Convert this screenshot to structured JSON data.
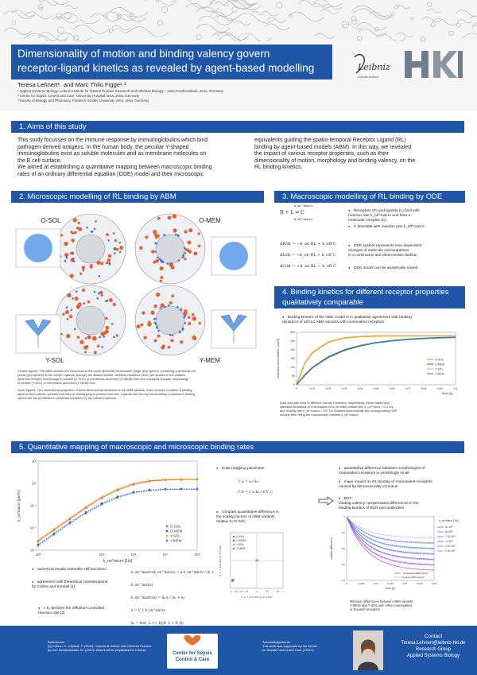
{
  "title_lines": [
    "Dimensionality of motion and binding valency govern",
    "receptor-ligand kinetics as revealed by agent-based modelling"
  ],
  "authors": "Teresa Lehnert¹˒ and Marc Thilo Figge¹˒³",
  "affiliations": [
    "¹ Applied Systems Biology, Leibniz Institute for Natural Product Research and Infection Biology – Hans-Knöll-Institute, Jena, Germany",
    "² Center for Sepsis Control and Care, University Hospital Jena, Jena, Germany",
    "³ Faculty of Biology and Pharmacy, Friedrich Schiller University Jena, Jena, Germany"
  ],
  "logos": {
    "leibniz": "Leibniz",
    "leibniz_sub": "Leibniz-Institut",
    "hki": "HKI"
  },
  "sec1": {
    "heading": "1. Aims of this study",
    "left_lines": [
      "This study focusses on the immune response by immunoglobulins which bind",
      "pathogen-derived antigens. In the human body, the peculiar Y-shaped",
      "immunoglobulins exist as soluble molecules and as membrane molecules on",
      "the B cell surface.",
      "We aimed at establishing a quantitative mapping between macroscopic binding",
      "rates of an ordinary differential equation (ODE) model and their microscopic"
    ],
    "right_lines": [
      "equivalents guiding the spatio-temporal Receptor Ligand (RL)",
      "binding by  agent-based models (ABM). In this way, we revealed",
      "the impact of various receptor properties, such as their",
      "dimensionality of motion, morphology and binding valency, on the",
      "RL binding kinetics."
    ]
  },
  "sec2": {
    "heading": "2. Microscopic modelling of RL binding by ABM",
    "labels": [
      "O-SOL",
      "O-MEM",
      "Y-SOL",
      "Y-MEM"
    ],
    "caption1": [
      "Central figures: The ABM variants are composed of the same spherical environment (large grey sphere) containing a spherical cell",
      "(small grey sphere) at the center. Ligands (orange) are always soluble, whereas receptors (blue) are studied in the variants",
      "spherical receptor morphology in soluble (O-SOL) or membrane-anchored (O-MEM) form and Y-shaped receptor morphology",
      "in soluble (Y-SOL) or membrane-anchored (Y-MEM) form."
    ],
    "caption2": [
      "Outer figures: Two dimensional projection of three-dimensional receptors of the ABM variants. Each receptor consists of binding",
      "spheres and collision spheres that may be overlapping in position and size. Ligands can bind by encountering a receptor's binding",
      "sphere but are prohibited to penetrate receptors by the collision spheres."
    ]
  },
  "sec3": {
    "heading": "3. Macroscopic modelling of RL binding by ODE",
    "bullets": [
      [
        "Receptors (R) and ligands (L) bind with",
        "reaction rate k_on^macro and form a",
        "molecular complex (C)"
      ],
      [
        "C dissolate with reaction rate k_off^macro"
      ],
      [
        "ODE system represents time-dependent",
        "changes of molecule concentrations",
        "in a continuous and deterministic fashion"
      ],
      [
        "ODE model can be analytically solved"
      ]
    ],
    "eq_reaction": "R + L ⇌ C",
    "eq_rate_top": "k_on^macro",
    "eq_rate_bottom": "k_off^macro",
    "eq_lines": [
      "dR/dt = −k_on RL + k_off C",
      "dL/dt = −k_on RL + k_off C",
      "dC/dt = +k_on RL − k_off C"
    ]
  },
  "sec4": {
    "heading_lines": [
      "4. Binding kinetics for different receptor properties",
      "qualitatively comparable"
    ],
    "bullet": [
      "binding kinetics of the ODE model is in qualitative agreement with binding",
      "dynamics of all four ABM variants with monovalent receptors"
    ],
    "caption": [
      "Dark and pale lines in different colours represent, respectively, mean values and",
      "standard deviations of 5 simulation runs per ABM variant with k_on^micro = 0.1 1/s",
      "and binding rate k_on^macro = 10⁹ 1/s. Dashed lines indicate the corresponding ODE",
      "models after fitting the  macroscopic reaction k_on^macro."
    ]
  },
  "sec5": {
    "heading": "5. Quantitative mapping of macroscopic and microscopic binding rates",
    "bullets_left": [
      [
        "numerical results resemble Hill functions:"
      ],
      [
        "agreement with theoretical considerations",
        "by Collins and Kimball [1]:"
      ]
    ],
    "note_left": [
      "> k₂ denotes the diffusion-controlled",
      "reaction rate [2]"
    ],
    "formulas_left": [
      "k_on^macro(k_on^micro) = a k_on^micro / (b + k_on^micro)",
      "k_on^macro(κ) = k₂ κ / (k₂ + κ)",
      "κ = V_c k_on^micro",
      "k₂ = 4π(r_L + r_R)(D_L + D_R)"
    ],
    "mid_bullets": [
      [
        "scale mapping parameter"
      ],
      [
        "compare quantitative difference in",
        "the scaling factors of ABM variants",
        "relative to O-SOL:"
      ]
    ],
    "mid_formulas": [
      "f_a = a / k₂",
      "f_b = f_a k₂ / b V_c"
    ],
    "right_bullets": [
      [
        "quantitative difference between morphologies of",
        "monovalent receptors is vanishingly small"
      ],
      [
        "major impact on RL binding of monovalent receptors",
        "caused by dimensionality of motion"
      ],
      [
        "BUT:",
        "binding valency compensates differences in the",
        "binding kinetics of BCR and antibodies"
      ]
    ],
    "right_caption": [
      "Relative differences between ABM variants",
      "Y-MEM and Y-SOL with either monovalent",
      "or bivalent receptors"
    ]
  },
  "footer": {
    "refs_title": "References:",
    "refs": [
      "[1] Collins, G., Kimball, F. (1949). Journal of Colloid and Interface Science.",
      "[2] Von Smoluchowski, M. (1917). Zeitschrift für physikalische Chemie"
    ],
    "center_lines": [
      "Center for Sepsis",
      "Control & Care"
    ],
    "ack_title": "Acknowledgements:",
    "ack": [
      "This work was supported by the Center",
      "for Sepsis Control and Care (CSCC)."
    ],
    "contact_title": "Contact",
    "contact": [
      "Teresa.Lehnert@leibniz-hki.de",
      "Research Group",
      "Applied Systems Biology"
    ]
  },
  "chart_data": [
    {
      "type": "line",
      "title": "",
      "xlabel": "time [s]",
      "ylabel": "molecular concentration [1/μm³]",
      "xlim": [
        0,
        0.1
      ],
      "ylim": [
        0,
        300
      ],
      "x_ticks": [
        "0",
        "0.01",
        "0.02",
        "0.03",
        "0.04",
        "0.05",
        "0.06",
        "0.07",
        "0.08",
        "0.09",
        "0.1"
      ],
      "y_ticks": [
        "0",
        "50",
        "100",
        "150",
        "200",
        "250",
        "300"
      ],
      "x": [
        0,
        0.005,
        0.01,
        0.02,
        0.03,
        0.04,
        0.05,
        0.06,
        0.07,
        0.08,
        0.09,
        0.1
      ],
      "series": [
        {
          "name": "O-SOL",
          "color": "#e87030",
          "values": [
            0,
            120,
            185,
            245,
            268,
            276,
            279,
            280,
            280,
            280,
            280,
            280
          ]
        },
        {
          "name": "O-MEM",
          "color": "#2a7a2a",
          "values": [
            0,
            55,
            100,
            160,
            200,
            225,
            242,
            253,
            261,
            266,
            270,
            272
          ]
        },
        {
          "name": "Y-SOL",
          "color": "#f0b020",
          "values": [
            0,
            118,
            182,
            243,
            267,
            275,
            278,
            279,
            280,
            280,
            280,
            280
          ]
        },
        {
          "name": "Y-MEM",
          "color": "#3070c0",
          "values": [
            0,
            52,
            97,
            156,
            196,
            222,
            240,
            251,
            259,
            264,
            268,
            271
          ]
        }
      ],
      "legend": "bottom-right"
    },
    {
      "type": "line",
      "title": "",
      "xlabel": "k_on^micro [1/s]",
      "ylabel": "k_on^macro [μm³/s]",
      "x_scale": "log",
      "y_scale": "log",
      "x_ticks": [
        "10³",
        "10⁵",
        "10⁶",
        "10⁷",
        "10⁸"
      ],
      "y_ticks": [
        "10⁻³",
        "10⁻²",
        "10⁻¹",
        "10⁰",
        "10¹"
      ],
      "x_log": [
        3,
        3.5,
        4,
        4.5,
        5,
        5.5,
        6,
        6.5,
        7,
        7.5,
        8
      ],
      "series": [
        {
          "name": "O-SOL",
          "color": "#e06030",
          "values_log": [
            -2.6,
            -2.1,
            -1.6,
            -1.1,
            -0.65,
            -0.3,
            -0.05,
            0.1,
            0.15,
            0.17,
            0.18
          ]
        },
        {
          "name": "O-MEM",
          "color": "#2a5fb0",
          "values_log": [
            -2.75,
            -2.25,
            -1.75,
            -1.3,
            -0.9,
            -0.6,
            -0.4,
            -0.3,
            -0.26,
            -0.25,
            -0.25
          ]
        },
        {
          "name": "Y-SOL",
          "color": "#f0a020",
          "values_log": [
            -2.55,
            -2.05,
            -1.55,
            -1.05,
            -0.6,
            -0.25,
            0.0,
            0.13,
            0.17,
            0.19,
            0.2
          ]
        },
        {
          "name": "Y-MEM",
          "color": "#5080d0",
          "values_log": [
            -2.8,
            -2.3,
            -1.8,
            -1.35,
            -0.95,
            -0.65,
            -0.42,
            -0.32,
            -0.28,
            -0.27,
            -0.27
          ]
        }
      ],
      "legend": "bottom-right"
    },
    {
      "type": "scatter",
      "title": "",
      "xlabel": "(f_a - f_a^O-SOL)/f_a^O-SOL",
      "ylabel": "(f_b - f_b^O-SOL)/f_b^O-SOL",
      "xlim": [
        -1,
        1
      ],
      "ylim": [
        -1,
        1
      ],
      "x_ticks": [
        "-1",
        "-0.8",
        "-0.6",
        "-0.4",
        "0",
        "0.4",
        "0.8",
        "1"
      ],
      "series": [
        {
          "name": "O-SOL",
          "color": "#e06030",
          "points": [
            [
              0,
              0
            ]
          ]
        },
        {
          "name": "O-MEM",
          "color": "#2a5fb0",
          "points": [
            [
              -0.92,
              -0.72
            ]
          ]
        },
        {
          "name": "Y-SOL",
          "color": "#f0a020",
          "points": [
            [
              0.02,
              0.01
            ]
          ]
        },
        {
          "name": "Y-MEM",
          "color": "#5080d0",
          "points": [
            [
              -0.9,
              -0.7
            ]
          ]
        }
      ],
      "legend": "top-left"
    },
    {
      "type": "line",
      "title": "",
      "xlabel": "time [s]",
      "ylabel": "relative difference",
      "xlim": [
        0,
        0.03
      ],
      "ylim": [
        -0.4,
        0
      ],
      "x_ticks": [
        "0",
        "0.005",
        "0.01",
        "0.015",
        "0.02",
        "0.025",
        "0.03"
      ],
      "legend_title": "k_on^micro [1/s]",
      "series": [
        {
          "name": "5×10³",
          "color": "#c040c0"
        },
        {
          "name": "8×10³",
          "color": "#9050d0"
        },
        {
          "name": "7.5×10⁴",
          "color": "#7060e0"
        },
        {
          "name": "1×10⁵",
          "color": "#5070e0"
        },
        {
          "name": "1.5×10⁵",
          "color": "#6080d0"
        },
        {
          "name": "2.5×10⁵",
          "color": "#8090c0"
        }
      ],
      "legend_extra": [
        "monovalent ABM variant",
        "bivalent ABM variant"
      ]
    }
  ]
}
